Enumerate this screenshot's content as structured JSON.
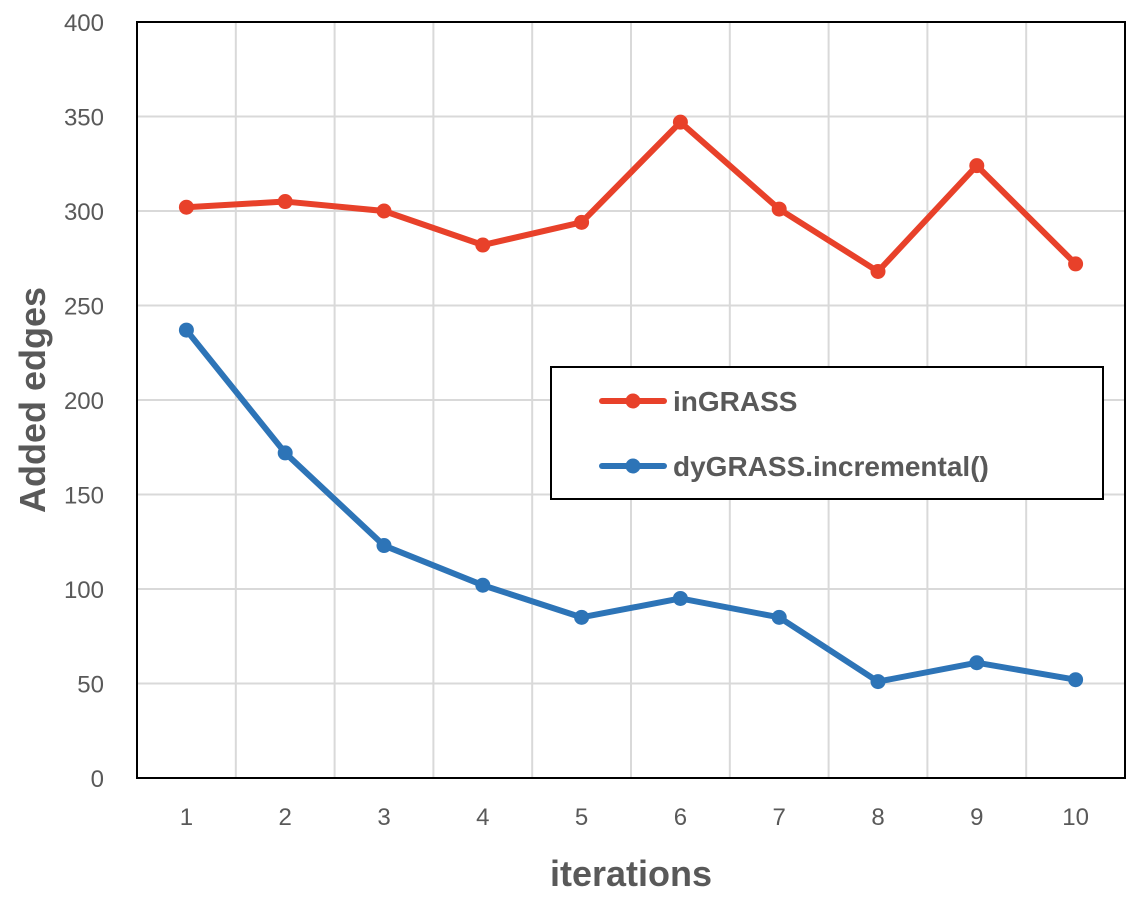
{
  "chart_data": {
    "type": "line",
    "x": [
      1,
      2,
      3,
      4,
      5,
      6,
      7,
      8,
      9,
      10
    ],
    "categories": [
      "1",
      "2",
      "3",
      "4",
      "5",
      "6",
      "7",
      "8",
      "9",
      "10"
    ],
    "series": [
      {
        "name": "inGRASS",
        "color": "#e8412a",
        "values": [
          302,
          305,
          300,
          282,
          294,
          347,
          301,
          268,
          324,
          272
        ]
      },
      {
        "name": "dyGRASS.incremental()",
        "color": "#2d74b7",
        "values": [
          237,
          172,
          123,
          102,
          85,
          95,
          85,
          51,
          61,
          52
        ]
      }
    ],
    "xlabel": "iterations",
    "ylabel": "Added edges",
    "ylim": [
      0,
      400
    ],
    "yticks": [
      "0",
      "50",
      "100",
      "150",
      "200",
      "250",
      "300",
      "350",
      "400"
    ],
    "grid": true,
    "legend": "center-right"
  }
}
